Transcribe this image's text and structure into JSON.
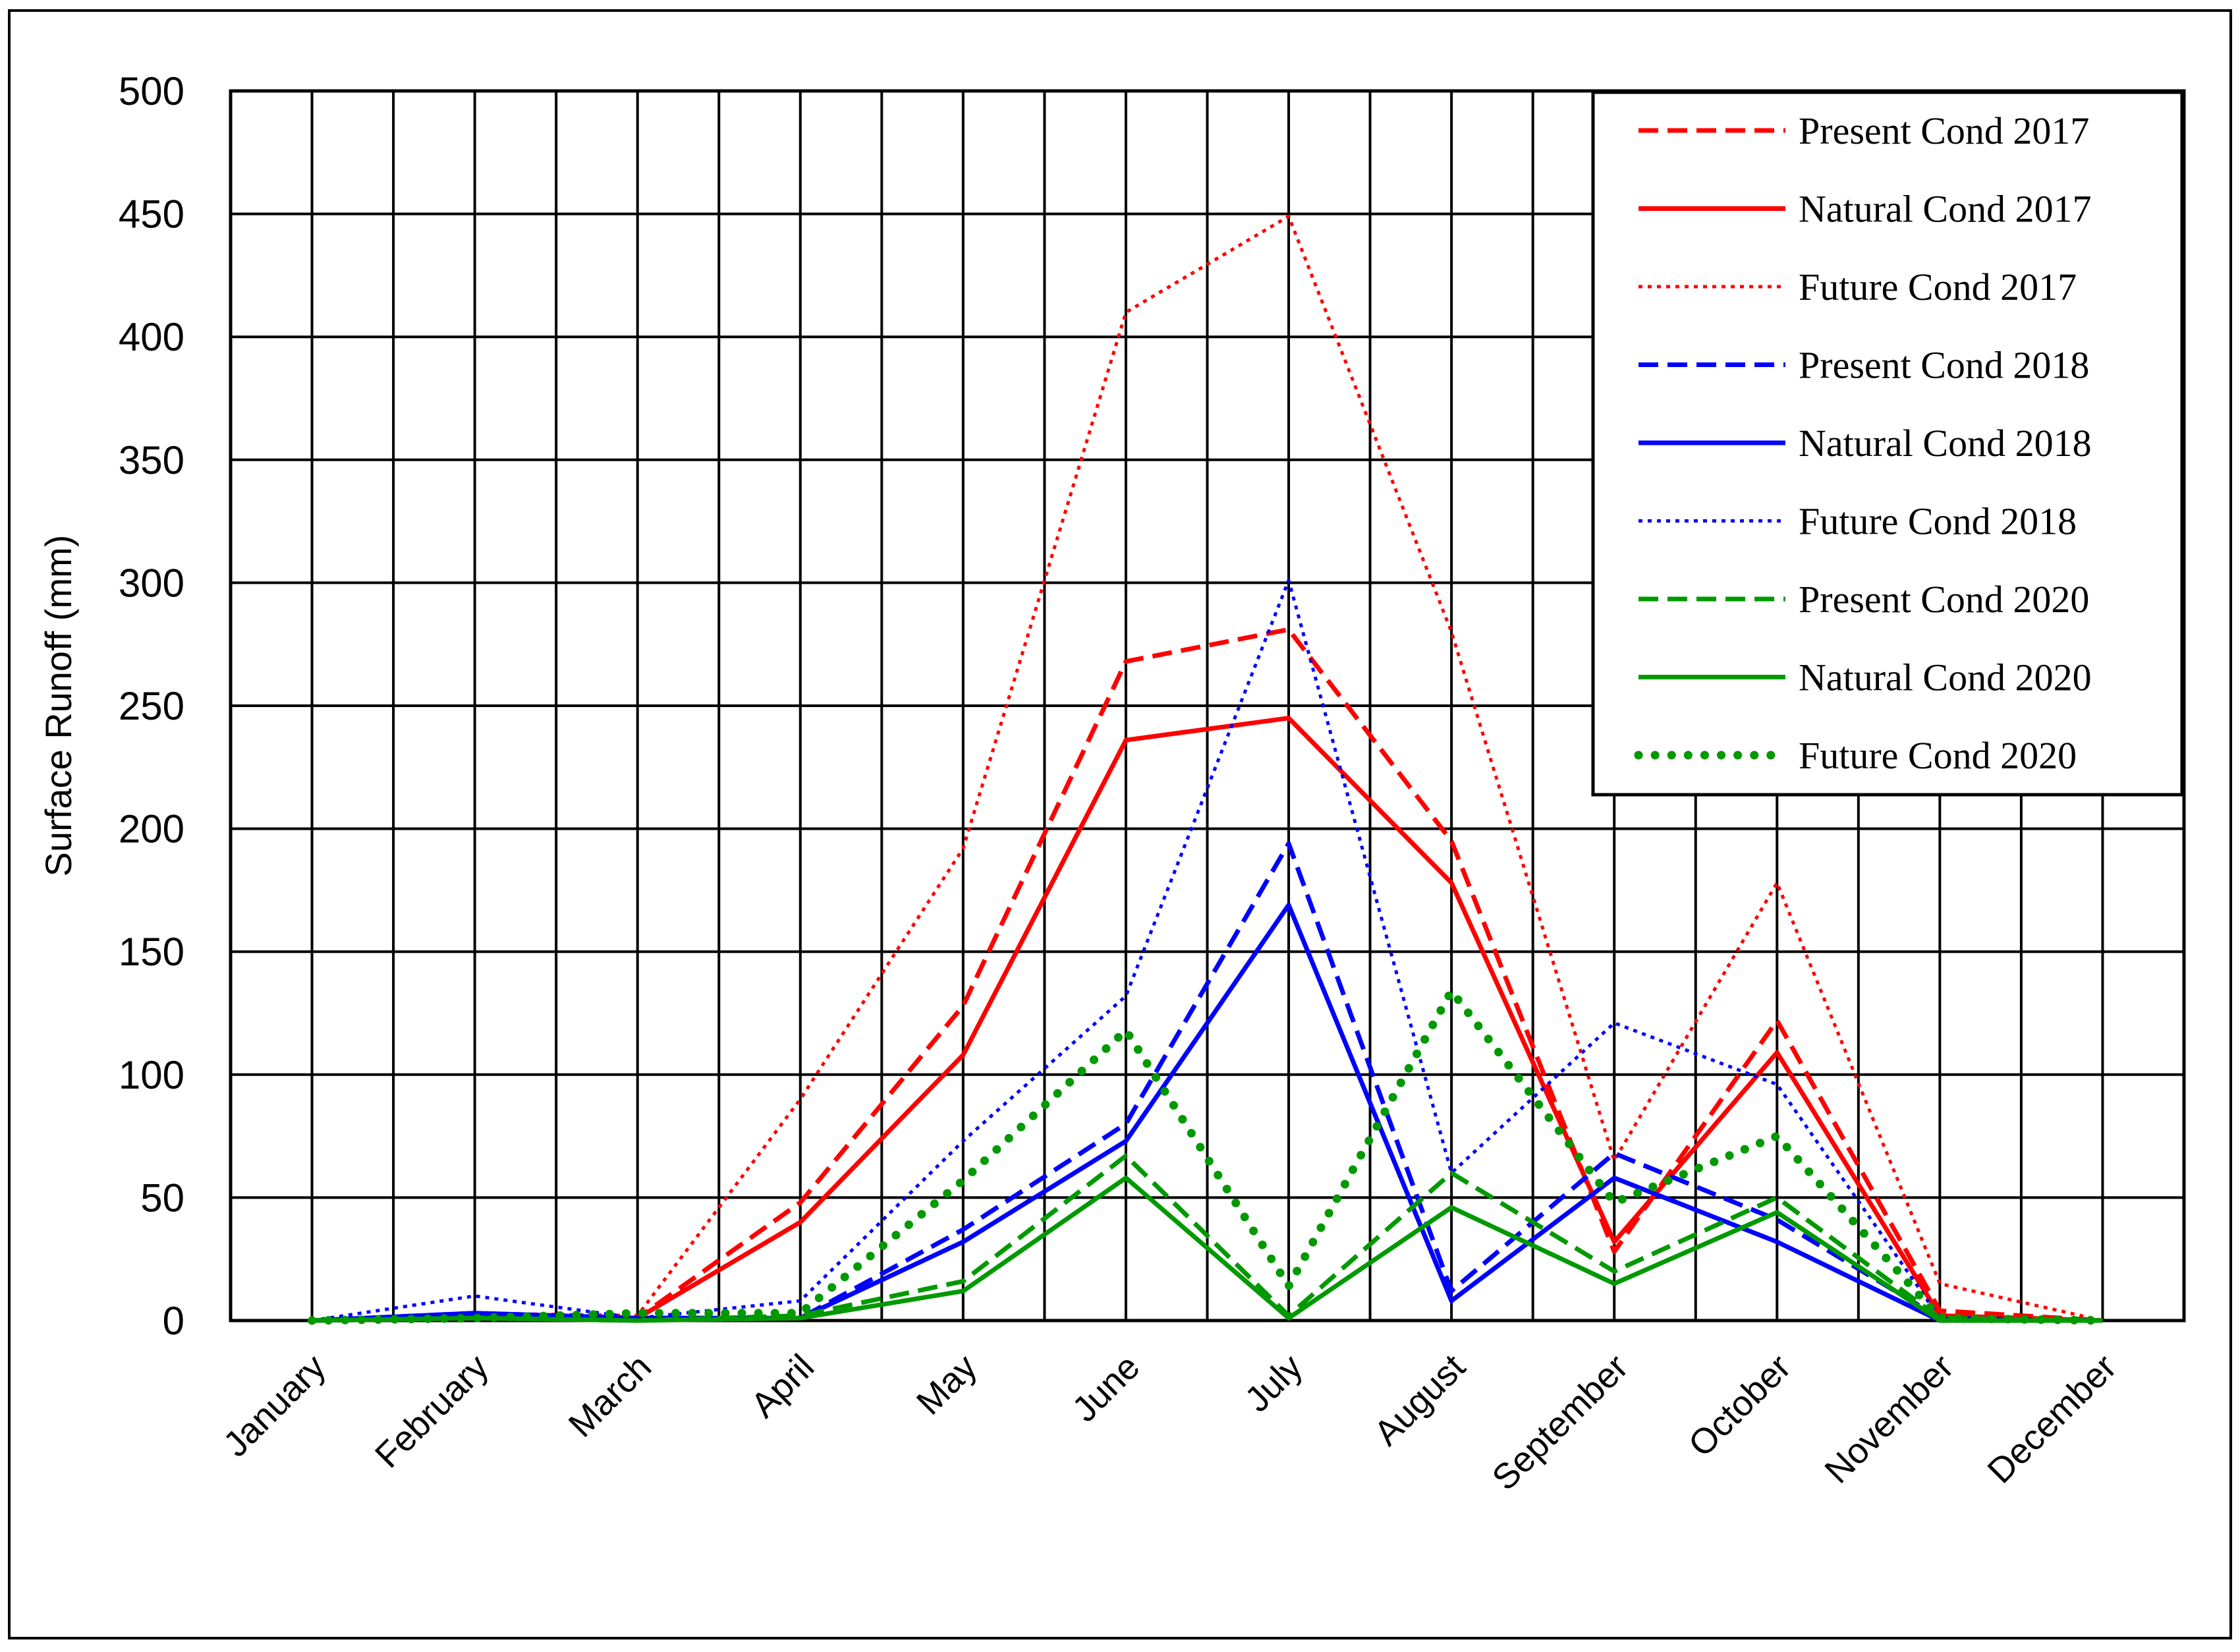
{
  "chart_data": {
    "type": "line",
    "title": "",
    "xlabel": "",
    "ylabel": "Surface Runoff  (mm)",
    "ylim": [
      0,
      500
    ],
    "y_ticks": [
      "0",
      "50",
      "100",
      "150",
      "200",
      "250",
      "300",
      "350",
      "400",
      "450",
      "500"
    ],
    "y_tick_values": [
      0,
      50,
      100,
      150,
      200,
      250,
      300,
      350,
      400,
      450,
      500
    ],
    "grid": "on",
    "legend_position": "top-right",
    "categories": [
      "January",
      "February",
      "March",
      "April",
      "May",
      "June",
      "July",
      "August",
      "September",
      "October",
      "November",
      "December"
    ],
    "series": [
      {
        "name": "Present Cond 2017",
        "color": "#ff0000",
        "style": "dashed",
        "values": [
          0,
          2,
          1,
          48,
          128,
          268,
          281,
          195,
          28,
          122,
          4,
          0
        ]
      },
      {
        "name": "Natural Cond 2017",
        "color": "#ff0000",
        "style": "solid",
        "values": [
          0,
          1,
          1,
          40,
          108,
          236,
          245,
          178,
          32,
          109,
          2,
          0
        ]
      },
      {
        "name": "Future Cond 2017",
        "color": "#ff0000",
        "style": "dotted",
        "values": [
          0,
          3,
          2,
          90,
          192,
          410,
          449,
          280,
          65,
          178,
          15,
          0
        ]
      },
      {
        "name": "Present Cond 2018",
        "color": "#0000ff",
        "style": "dashed",
        "values": [
          0,
          3,
          1,
          1,
          37,
          80,
          194,
          12,
          68,
          41,
          1,
          0
        ]
      },
      {
        "name": "Natural Cond 2018",
        "color": "#0000ff",
        "style": "solid",
        "values": [
          0,
          3,
          1,
          1,
          32,
          73,
          169,
          8,
          58,
          32,
          0,
          0
        ]
      },
      {
        "name": "Future Cond 2018",
        "color": "#0000ff",
        "style": "dotted",
        "values": [
          0,
          10,
          1,
          8,
          73,
          132,
          301,
          60,
          121,
          96,
          1,
          0
        ]
      },
      {
        "name": "Present Cond 2020",
        "color": "#009900",
        "style": "dashed",
        "values": [
          0,
          1,
          0,
          2,
          16,
          67,
          2,
          60,
          20,
          50,
          1,
          0
        ]
      },
      {
        "name": "Natural Cond 2020",
        "color": "#009900",
        "style": "solid",
        "values": [
          0,
          1,
          0,
          1,
          12,
          58,
          1,
          46,
          15,
          44,
          0,
          0
        ]
      },
      {
        "name": "Future Cond 2020",
        "color": "#009900",
        "style": "heavy-dotted",
        "values": [
          0,
          1,
          3,
          3,
          57,
          118,
          14,
          134,
          48,
          75,
          1,
          0
        ]
      }
    ]
  }
}
